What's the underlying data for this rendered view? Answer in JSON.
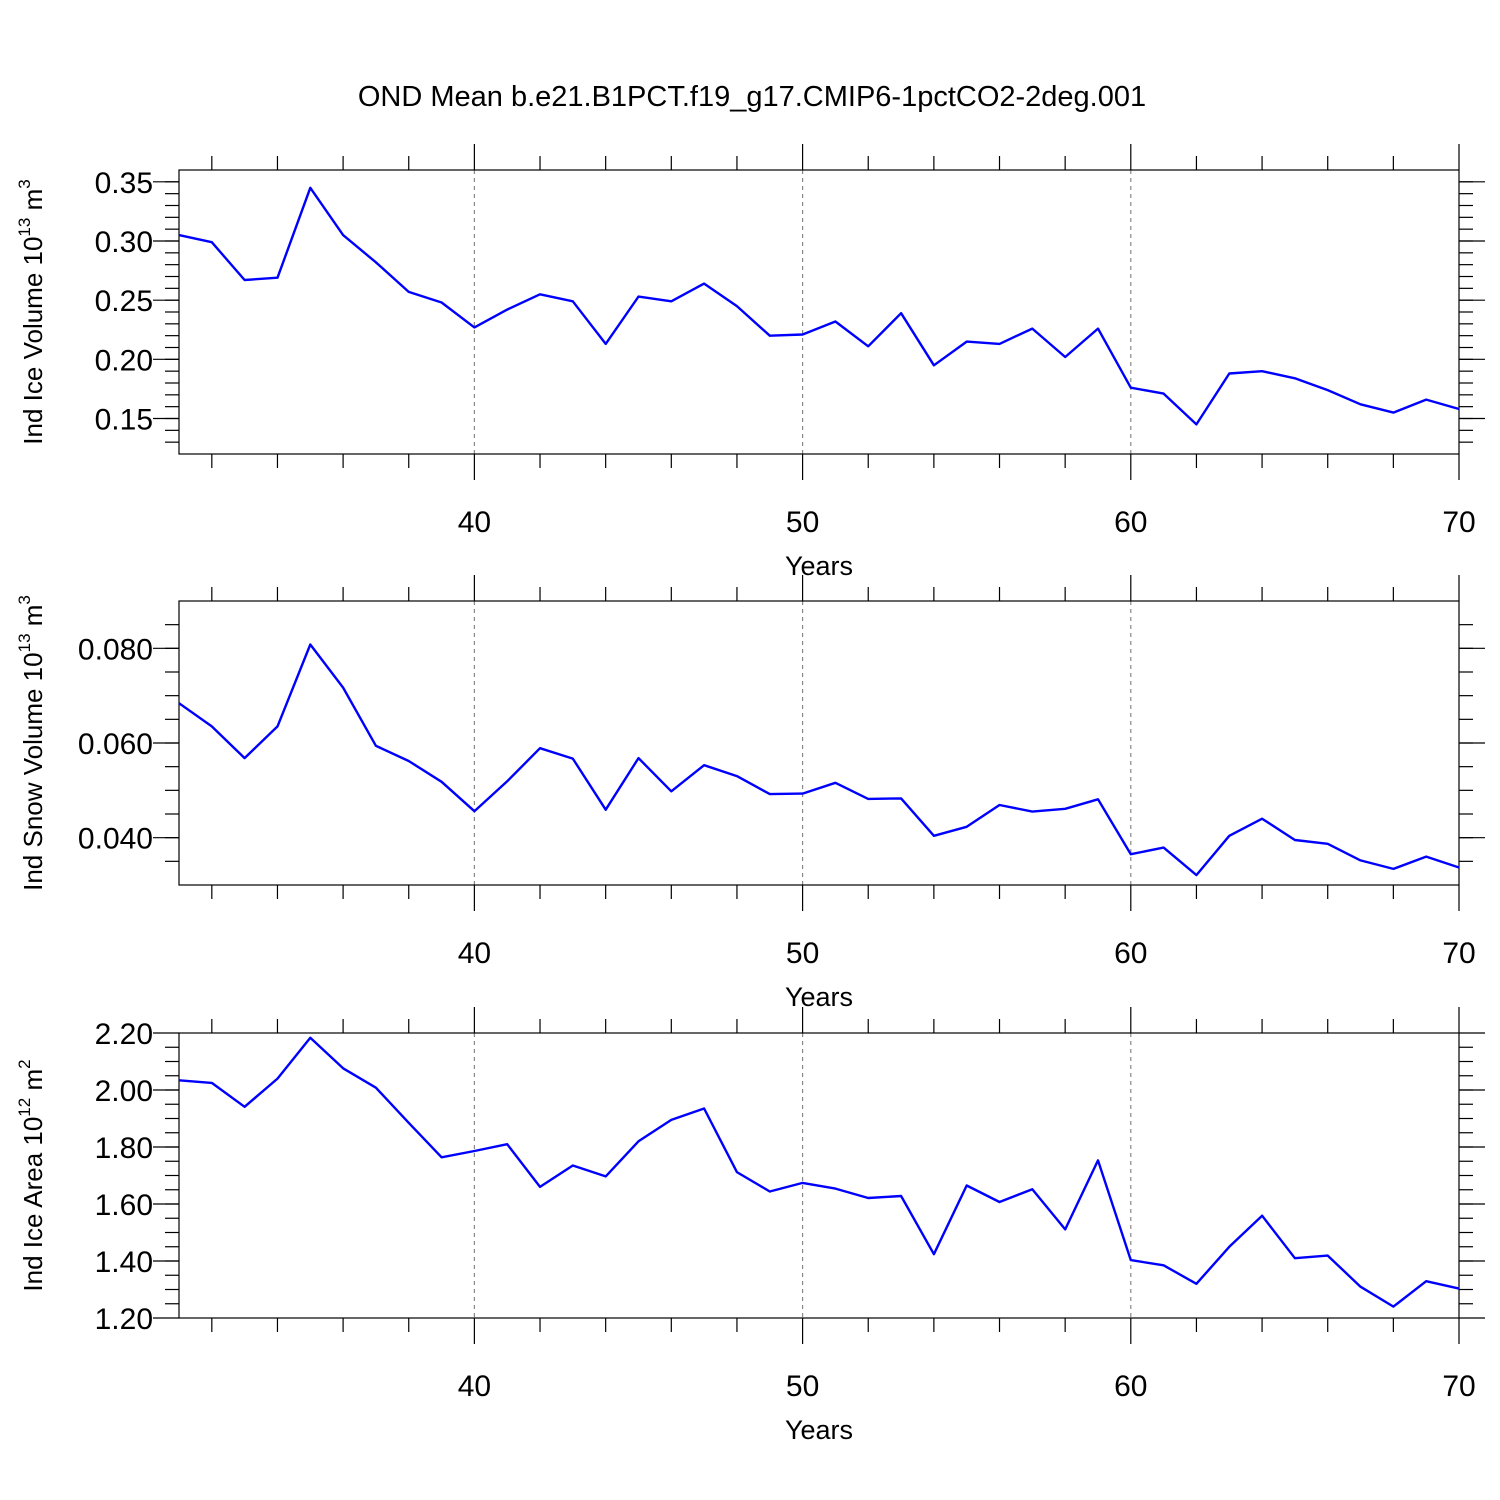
{
  "title": "OND Mean b.e21.B1PCT.f19_g17.CMIP6-1pctCO2-2deg.001",
  "colors": {
    "line": "#0000ff",
    "grid": "#888888",
    "axis": "#000000"
  },
  "chart_data": [
    {
      "type": "line",
      "ylabel": "Ind Ice Volume 10",
      "ylabel_sup": "13",
      "ylabel_unit": " m",
      "ylabel_unit_sup": "3",
      "xlabel": "Years",
      "xlim": [
        31,
        70
      ],
      "ylim": [
        0.12,
        0.36
      ],
      "x_ticks": [
        40,
        50,
        60,
        70
      ],
      "x_tick_labels": [
        "40",
        "50",
        "60",
        "70"
      ],
      "y_ticks": [
        0.15,
        0.2,
        0.25,
        0.3,
        0.35
      ],
      "y_tick_labels": [
        "0.15",
        "0.20",
        "0.25",
        "0.30",
        "0.35"
      ],
      "y_minor_step": 0.01,
      "grid_x": [
        40,
        50,
        60
      ],
      "x": [
        31,
        32,
        33,
        34,
        35,
        36,
        37,
        38,
        39,
        40,
        41,
        42,
        43,
        44,
        45,
        46,
        47,
        48,
        49,
        50,
        51,
        52,
        53,
        54,
        55,
        56,
        57,
        58,
        59,
        60,
        61,
        62,
        63,
        64,
        65,
        66,
        67,
        68,
        69,
        70
      ],
      "values": [
        0.305,
        0.299,
        0.267,
        0.269,
        0.345,
        0.305,
        0.282,
        0.257,
        0.248,
        0.227,
        0.242,
        0.255,
        0.249,
        0.213,
        0.253,
        0.249,
        0.264,
        0.245,
        0.22,
        0.221,
        0.232,
        0.211,
        0.239,
        0.195,
        0.215,
        0.213,
        0.226,
        0.202,
        0.226,
        0.176,
        0.171,
        0.145,
        0.188,
        0.19,
        0.184,
        0.174,
        0.162,
        0.155,
        0.166,
        0.158
      ]
    },
    {
      "type": "line",
      "ylabel": "Ind Snow Volume 10",
      "ylabel_sup": "13",
      "ylabel_unit": " m",
      "ylabel_unit_sup": "3",
      "xlabel": "Years",
      "xlim": [
        31,
        70
      ],
      "ylim": [
        0.03,
        0.09
      ],
      "x_ticks": [
        40,
        50,
        60,
        70
      ],
      "x_tick_labels": [
        "40",
        "50",
        "60",
        "70"
      ],
      "y_ticks": [
        0.04,
        0.06,
        0.08
      ],
      "y_tick_labels": [
        "0.040",
        "0.060",
        "0.080"
      ],
      "y_minor_step": 0.005,
      "grid_x": [
        40,
        50,
        60
      ],
      "x": [
        31,
        32,
        33,
        34,
        35,
        36,
        37,
        38,
        39,
        40,
        41,
        42,
        43,
        44,
        45,
        46,
        47,
        48,
        49,
        50,
        51,
        52,
        53,
        54,
        55,
        56,
        57,
        58,
        59,
        60,
        61,
        62,
        63,
        64,
        65,
        66,
        67,
        68,
        69,
        70
      ],
      "values": [
        0.0684,
        0.0635,
        0.0568,
        0.0635,
        0.0808,
        0.0717,
        0.0594,
        0.0562,
        0.0518,
        0.0456,
        0.0519,
        0.0589,
        0.0567,
        0.0459,
        0.0568,
        0.0498,
        0.0553,
        0.053,
        0.0492,
        0.0493,
        0.0516,
        0.0482,
        0.0483,
        0.0404,
        0.0423,
        0.0469,
        0.0455,
        0.0461,
        0.0481,
        0.0365,
        0.0379,
        0.0321,
        0.0404,
        0.044,
        0.0395,
        0.0387,
        0.0352,
        0.0334,
        0.036,
        0.0337
      ]
    },
    {
      "type": "line",
      "ylabel": "Ind Ice Area 10",
      "ylabel_sup": "12",
      "ylabel_unit": " m",
      "ylabel_unit_sup": "2",
      "xlabel": "Years",
      "xlim": [
        31,
        70
      ],
      "ylim": [
        1.2,
        2.2
      ],
      "x_ticks": [
        40,
        50,
        60,
        70
      ],
      "x_tick_labels": [
        "40",
        "50",
        "60",
        "70"
      ],
      "y_ticks": [
        1.2,
        1.4,
        1.6,
        1.8,
        2.0,
        2.2
      ],
      "y_tick_labels": [
        "1.20",
        "1.40",
        "1.60",
        "1.80",
        "2.00",
        "2.20"
      ],
      "y_minor_step": 0.05,
      "grid_x": [
        40,
        50,
        60
      ],
      "x": [
        31,
        32,
        33,
        34,
        35,
        36,
        37,
        38,
        39,
        40,
        41,
        42,
        43,
        44,
        45,
        46,
        47,
        48,
        49,
        50,
        51,
        52,
        53,
        54,
        55,
        56,
        57,
        58,
        59,
        60,
        61,
        62,
        63,
        64,
        65,
        66,
        67,
        68,
        69,
        70
      ],
      "values": [
        2.034,
        2.025,
        1.941,
        2.04,
        2.183,
        2.076,
        2.008,
        1.885,
        1.764,
        1.786,
        1.81,
        1.66,
        1.735,
        1.697,
        1.82,
        1.895,
        1.935,
        1.712,
        1.644,
        1.674,
        1.654,
        1.621,
        1.628,
        1.424,
        1.665,
        1.607,
        1.652,
        1.511,
        1.753,
        1.403,
        1.385,
        1.32,
        1.45,
        1.559,
        1.41,
        1.419,
        1.31,
        1.24,
        1.329,
        1.303
      ]
    }
  ]
}
